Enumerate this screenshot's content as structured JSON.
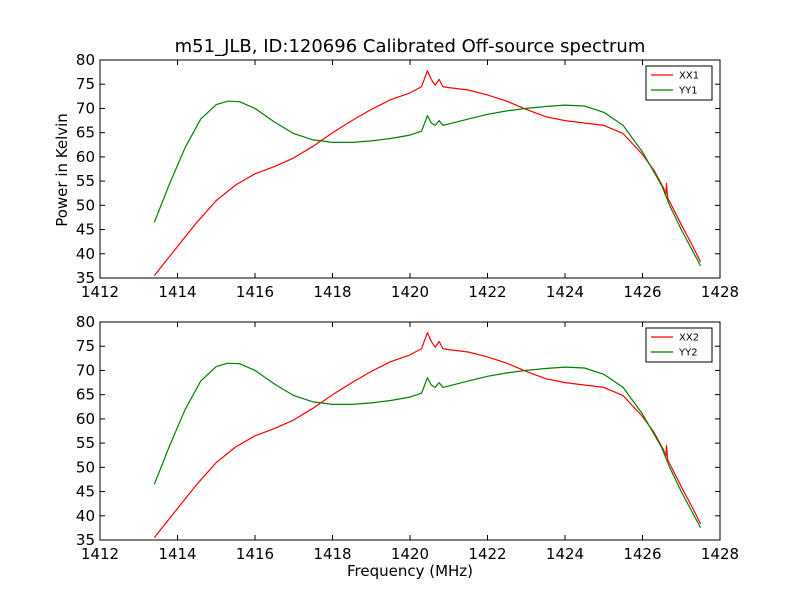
{
  "figure": {
    "title": "m51_JLB, ID:120696 Calibrated Off-source spectrum",
    "xlabel": "Frequency (MHz)",
    "ylabel": "Power in Kelvin"
  },
  "chart_data": [
    {
      "type": "line",
      "title": "m51_JLB, ID:120696 Calibrated Off-source spectrum",
      "xlabel": "",
      "ylabel": "Power in Kelvin",
      "xlim": [
        1412,
        1428
      ],
      "ylim": [
        35,
        80
      ],
      "xticks": [
        1412,
        1414,
        1416,
        1418,
        1420,
        1422,
        1424,
        1426,
        1428
      ],
      "yticks": [
        35,
        40,
        45,
        50,
        55,
        60,
        65,
        70,
        75,
        80
      ],
      "grid": false,
      "legend_position": "top-right",
      "series": [
        {
          "name": "XX1",
          "color": "#ff0000",
          "x": [
            1413.4,
            1414.0,
            1414.5,
            1415.0,
            1415.5,
            1416.0,
            1416.5,
            1417.0,
            1417.5,
            1418.0,
            1418.5,
            1419.0,
            1419.5,
            1420.0,
            1420.3,
            1420.45,
            1420.55,
            1420.65,
            1420.75,
            1420.85,
            1421.0,
            1421.5,
            1422.0,
            1422.5,
            1423.0,
            1423.5,
            1424.0,
            1424.5,
            1425.0,
            1425.5,
            1426.0,
            1426.3,
            1426.55,
            1426.6,
            1426.62,
            1426.65,
            1426.7,
            1427.0,
            1427.3,
            1427.5
          ],
          "values": [
            35.5,
            41.5,
            46.5,
            51.0,
            54.2,
            56.5,
            58.0,
            59.8,
            62.2,
            65.0,
            67.5,
            69.8,
            71.8,
            73.2,
            74.5,
            77.8,
            76.0,
            74.8,
            76.0,
            74.5,
            74.3,
            73.8,
            72.8,
            71.5,
            69.8,
            68.3,
            67.5,
            67.0,
            66.5,
            64.8,
            60.5,
            57.2,
            53.5,
            52.0,
            54.5,
            51.5,
            50.8,
            46.0,
            41.5,
            38.3
          ]
        },
        {
          "name": "YY1",
          "color": "#008000",
          "x": [
            1413.4,
            1413.8,
            1414.2,
            1414.6,
            1415.0,
            1415.3,
            1415.6,
            1416.0,
            1416.5,
            1417.0,
            1417.5,
            1418.0,
            1418.5,
            1419.0,
            1419.5,
            1420.0,
            1420.3,
            1420.45,
            1420.55,
            1420.65,
            1420.75,
            1420.85,
            1421.0,
            1421.5,
            1422.0,
            1422.5,
            1423.0,
            1423.5,
            1424.0,
            1424.5,
            1425.0,
            1425.5,
            1426.0,
            1426.5,
            1426.7,
            1427.0,
            1427.5
          ],
          "values": [
            46.5,
            54.5,
            62.0,
            67.8,
            70.8,
            71.5,
            71.4,
            70.0,
            67.2,
            64.8,
            63.5,
            63.0,
            63.0,
            63.3,
            63.8,
            64.5,
            65.3,
            68.5,
            67.0,
            66.5,
            67.5,
            66.5,
            66.8,
            67.8,
            68.8,
            69.5,
            70.0,
            70.4,
            70.7,
            70.5,
            69.2,
            66.5,
            61.0,
            54.0,
            50.0,
            45.0,
            37.5
          ]
        }
      ]
    },
    {
      "type": "line",
      "title": "",
      "xlabel": "Frequency (MHz)",
      "ylabel": "",
      "xlim": [
        1412,
        1428
      ],
      "ylim": [
        35,
        80
      ],
      "xticks": [
        1412,
        1414,
        1416,
        1418,
        1420,
        1422,
        1424,
        1426,
        1428
      ],
      "yticks": [
        35,
        40,
        45,
        50,
        55,
        60,
        65,
        70,
        75,
        80
      ],
      "grid": false,
      "legend_position": "top-right",
      "series": [
        {
          "name": "XX2",
          "color": "#ff0000",
          "x": [
            1413.4,
            1414.0,
            1414.5,
            1415.0,
            1415.5,
            1416.0,
            1416.5,
            1417.0,
            1417.5,
            1418.0,
            1418.5,
            1419.0,
            1419.5,
            1420.0,
            1420.3,
            1420.45,
            1420.55,
            1420.65,
            1420.75,
            1420.85,
            1421.0,
            1421.5,
            1422.0,
            1422.5,
            1423.0,
            1423.5,
            1424.0,
            1424.5,
            1425.0,
            1425.5,
            1426.0,
            1426.3,
            1426.55,
            1426.6,
            1426.62,
            1426.65,
            1426.7,
            1427.0,
            1427.3,
            1427.5
          ],
          "values": [
            35.5,
            41.5,
            46.5,
            51.0,
            54.2,
            56.5,
            58.0,
            59.8,
            62.2,
            65.0,
            67.5,
            69.8,
            71.8,
            73.2,
            74.5,
            77.8,
            76.0,
            74.8,
            76.0,
            74.5,
            74.3,
            73.8,
            72.8,
            71.5,
            69.8,
            68.3,
            67.5,
            67.0,
            66.5,
            64.8,
            60.5,
            57.2,
            53.5,
            52.0,
            54.5,
            51.5,
            50.8,
            46.0,
            41.5,
            38.3
          ]
        },
        {
          "name": "YY2",
          "color": "#008000",
          "x": [
            1413.4,
            1413.8,
            1414.2,
            1414.6,
            1415.0,
            1415.3,
            1415.6,
            1416.0,
            1416.5,
            1417.0,
            1417.5,
            1418.0,
            1418.5,
            1419.0,
            1419.5,
            1420.0,
            1420.3,
            1420.45,
            1420.55,
            1420.65,
            1420.75,
            1420.85,
            1421.0,
            1421.5,
            1422.0,
            1422.5,
            1423.0,
            1423.5,
            1424.0,
            1424.5,
            1425.0,
            1425.5,
            1426.0,
            1426.5,
            1426.7,
            1427.0,
            1427.5
          ],
          "values": [
            46.5,
            54.5,
            62.0,
            67.8,
            70.8,
            71.5,
            71.4,
            70.0,
            67.2,
            64.8,
            63.5,
            63.0,
            63.0,
            63.3,
            63.8,
            64.5,
            65.3,
            68.5,
            67.0,
            66.5,
            67.5,
            66.5,
            66.8,
            67.8,
            68.8,
            69.5,
            70.0,
            70.4,
            70.7,
            70.5,
            69.2,
            66.5,
            61.0,
            54.0,
            50.0,
            45.0,
            37.5
          ]
        }
      ]
    }
  ]
}
